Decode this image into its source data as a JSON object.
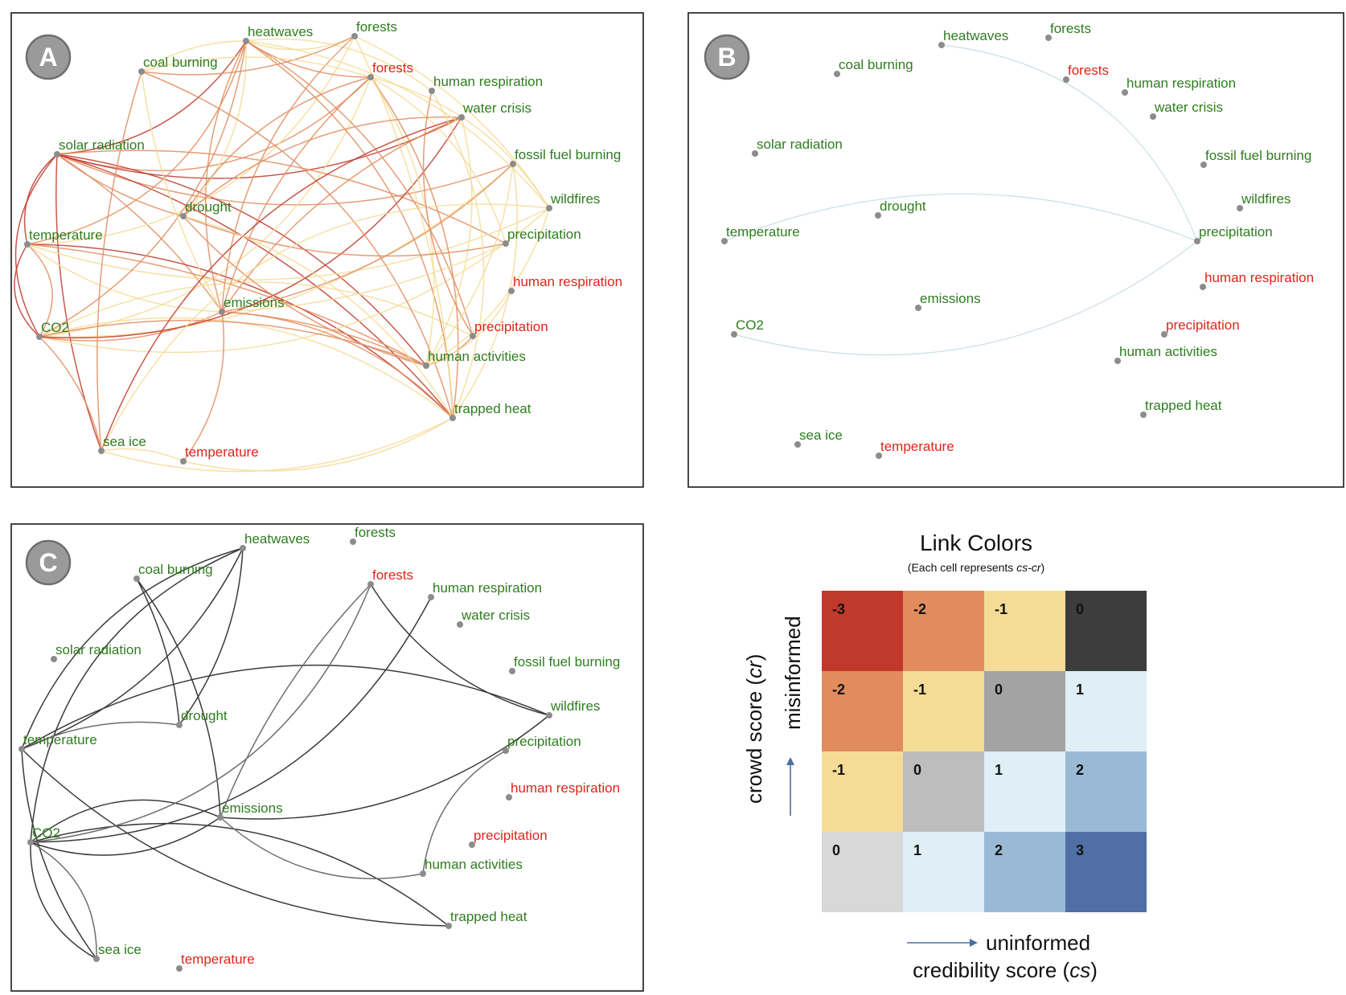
{
  "colors": {
    "label_correct": "#2e7d1f",
    "label_incorrect": "#e0241b",
    "node": "#8c8c8c",
    "link_scale": {
      "-3": "#c0392b",
      "-2": "#e28c5e",
      "-1": "#f4dc97",
      "0_top": "#3d3d3d",
      "0_mid": "#a3a3a3",
      "0_low": "#bdbdbd",
      "0_corner": "#d8d8d8",
      "1": "#e0eef5",
      "2": "#9ab9d4",
      "3": "#4f6fa6"
    },
    "panel_c_link": "#3a3a3a",
    "panel_b_link": "#c9dfe8"
  },
  "panels": [
    {
      "id": "A",
      "badge": "A"
    },
    {
      "id": "B",
      "badge": "B"
    },
    {
      "id": "C",
      "badge": "C"
    }
  ],
  "nodes": [
    {
      "key": "heatwaves",
      "label": "heatwaves",
      "status": "correct"
    },
    {
      "key": "forests_g",
      "label": "forests",
      "status": "correct"
    },
    {
      "key": "coal_burning",
      "label": "coal burning",
      "status": "correct"
    },
    {
      "key": "forests_r",
      "label": "forests",
      "status": "incorrect"
    },
    {
      "key": "human_respiration_g",
      "label": "human respiration",
      "status": "correct"
    },
    {
      "key": "water_crisis",
      "label": "water crisis",
      "status": "correct"
    },
    {
      "key": "solar_radiation",
      "label": "solar radiation",
      "status": "correct"
    },
    {
      "key": "fossil_fuel_burning",
      "label": "fossil fuel burning",
      "status": "correct"
    },
    {
      "key": "wildfires",
      "label": "wildfires",
      "status": "correct"
    },
    {
      "key": "drought",
      "label": "drought",
      "status": "correct"
    },
    {
      "key": "temperature_g",
      "label": "temperature",
      "status": "correct"
    },
    {
      "key": "precipitation_g",
      "label": "precipitation",
      "status": "correct"
    },
    {
      "key": "human_respiration_r",
      "label": "human respiration",
      "status": "incorrect"
    },
    {
      "key": "emissions",
      "label": "emissions",
      "status": "correct"
    },
    {
      "key": "co2",
      "label": "CO2",
      "status": "correct"
    },
    {
      "key": "precipitation_r",
      "label": "precipitation",
      "status": "incorrect"
    },
    {
      "key": "human_activities",
      "label": "human activities",
      "status": "correct"
    },
    {
      "key": "trapped_heat",
      "label": "trapped heat",
      "status": "correct"
    },
    {
      "key": "sea_ice",
      "label": "sea ice",
      "status": "correct"
    },
    {
      "key": "temperature_r",
      "label": "temperature",
      "status": "incorrect"
    }
  ],
  "legend": {
    "title": "Link Colors",
    "subtitle_prefix": "(Each cell represents ",
    "subtitle_italic": "cs-cr",
    "subtitle_suffix": ")",
    "y_axis_prefix": "crowd score (",
    "y_axis_italic": "cr",
    "y_axis_suffix": ")",
    "y_direction_label": "misinformed",
    "x_direction_label": "uninformed",
    "x_axis_prefix": "credibility score (",
    "x_axis_italic": "cs",
    "x_axis_suffix": ")",
    "grid": [
      [
        {
          "value": "-3",
          "color": "#c0392b"
        },
        {
          "value": "-2",
          "color": "#e28c5e"
        },
        {
          "value": "-1",
          "color": "#f4dc97"
        },
        {
          "value": "0",
          "color": "#3d3d3d"
        }
      ],
      [
        {
          "value": "-2",
          "color": "#e28c5e"
        },
        {
          "value": "-1",
          "color": "#f4dc97"
        },
        {
          "value": "0",
          "color": "#a3a3a3"
        },
        {
          "value": "1",
          "color": "#e0eef5"
        }
      ],
      [
        {
          "value": "-1",
          "color": "#f4dc97"
        },
        {
          "value": "0",
          "color": "#bdbdbd"
        },
        {
          "value": "1",
          "color": "#e0eef5"
        },
        {
          "value": "2",
          "color": "#9ab9d4"
        }
      ],
      [
        {
          "value": "0",
          "color": "#d8d8d8"
        },
        {
          "value": "1",
          "color": "#e0eef5"
        },
        {
          "value": "2",
          "color": "#9ab9d4"
        },
        {
          "value": "3",
          "color": "#4f6fa6"
        }
      ]
    ]
  }
}
